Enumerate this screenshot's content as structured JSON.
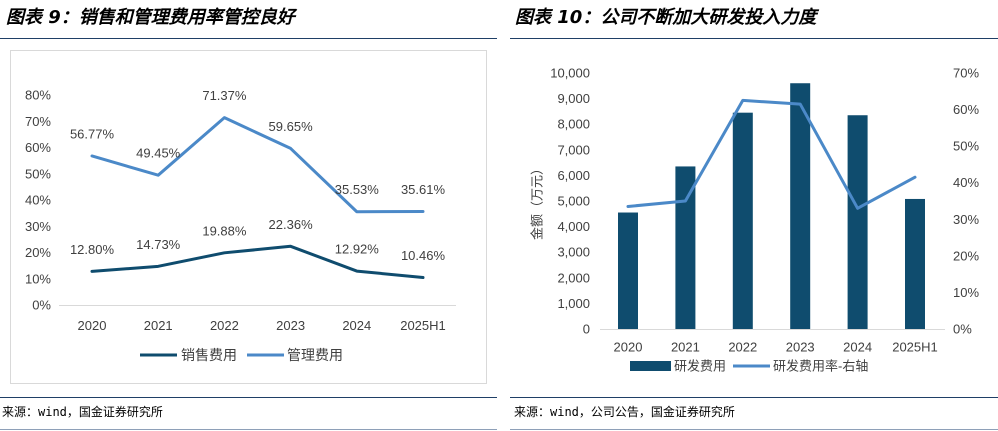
{
  "chart_data": [
    {
      "type": "line",
      "title": "图表 9：销售和管理费用率管控良好",
      "categories": [
        "2020",
        "2021",
        "2022",
        "2023",
        "2024",
        "2025H1"
      ],
      "series": [
        {
          "name": "销售费用",
          "values": [
            12.8,
            14.73,
            19.88,
            22.36,
            12.92,
            10.46
          ],
          "labels": [
            "12.80%",
            "14.73%",
            "19.88%",
            "22.36%",
            "12.92%",
            "10.46%"
          ],
          "color": "#0F4C6E"
        },
        {
          "name": "管理费用",
          "values": [
            56.77,
            49.45,
            71.37,
            59.65,
            35.53,
            35.61
          ],
          "labels": [
            "56.77%",
            "49.45%",
            "71.37%",
            "59.65%",
            "35.53%",
            "35.61%"
          ],
          "color": "#4B89C8"
        }
      ],
      "ylim": [
        0,
        80
      ],
      "yticks": [
        "0%",
        "10%",
        "20%",
        "30%",
        "40%",
        "50%",
        "60%",
        "70%",
        "80%"
      ],
      "grid": false,
      "legend": "bottom",
      "source": "来源：wind，国金证券研究所"
    },
    {
      "type": "bar+line",
      "title": "图表 10：公司不断加大研发投入力度",
      "categories": [
        "2020",
        "2021",
        "2022",
        "2023",
        "2024",
        "2025H1"
      ],
      "series": [
        {
          "name": "研发费用",
          "type": "bar",
          "values": [
            4550,
            6350,
            8450,
            9600,
            8350,
            5080
          ],
          "color": "#0F4C6E"
        },
        {
          "name": "研发费用率-右轴",
          "type": "line",
          "values": [
            33.5,
            35.0,
            62.5,
            61.5,
            33.0,
            41.5
          ],
          "color": "#4B89C8"
        }
      ],
      "ylabel": "金额（万元）",
      "ylim": [
        0,
        10000
      ],
      "yticks": [
        "0",
        "1,000",
        "2,000",
        "3,000",
        "4,000",
        "5,000",
        "6,000",
        "7,000",
        "8,000",
        "9,000",
        "10,000"
      ],
      "y2lim": [
        0,
        70
      ],
      "y2ticks": [
        "0%",
        "10%",
        "20%",
        "30%",
        "40%",
        "50%",
        "60%",
        "70%"
      ],
      "grid": false,
      "legend": "bottom",
      "source": "来源：wind，公司公告，国金证券研究所"
    }
  ]
}
